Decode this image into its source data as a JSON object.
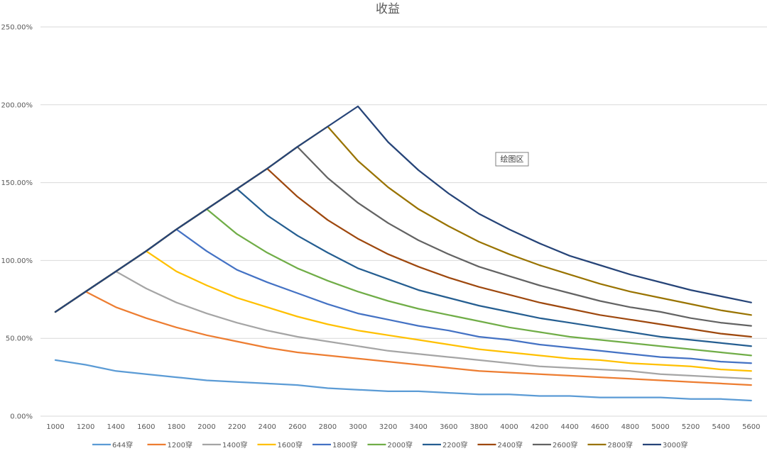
{
  "chart_data": {
    "type": "line",
    "title": "收益",
    "xlabel": "",
    "ylabel": "",
    "ylim": [
      0,
      2.5
    ],
    "grid": true,
    "legend_position": "bottom",
    "x": [
      1000,
      1200,
      1400,
      1600,
      1800,
      2000,
      2200,
      2400,
      2600,
      2800,
      3000,
      3200,
      3400,
      3600,
      3800,
      4000,
      4200,
      4400,
      4600,
      4800,
      5000,
      5200,
      5400,
      5600
    ],
    "y_ticks": [
      "0.00%",
      "50.00%",
      "100.00%",
      "150.00%",
      "200.00%",
      "250.00%"
    ],
    "y_tick_values": [
      0,
      0.5,
      1.0,
      1.5,
      2.0,
      2.5
    ],
    "series": [
      {
        "name": "644穿",
        "color": "#5b9bd5",
        "values": [
          0.36,
          0.33,
          0.29,
          0.27,
          0.25,
          0.23,
          0.22,
          0.21,
          0.2,
          0.18,
          0.17,
          0.16,
          0.16,
          0.15,
          0.14,
          0.14,
          0.13,
          0.13,
          0.12,
          0.12,
          0.12,
          0.11,
          0.11,
          0.1
        ]
      },
      {
        "name": "1200穿",
        "color": "#ed7d31",
        "values": [
          0.67,
          0.8,
          0.7,
          0.63,
          0.57,
          0.52,
          0.48,
          0.44,
          0.41,
          0.39,
          0.37,
          0.35,
          0.33,
          0.31,
          0.29,
          0.28,
          0.27,
          0.26,
          0.25,
          0.24,
          0.23,
          0.22,
          0.21,
          0.2
        ]
      },
      {
        "name": "1400穿",
        "color": "#a5a5a5",
        "values": [
          0.67,
          0.8,
          0.93,
          0.82,
          0.73,
          0.66,
          0.6,
          0.55,
          0.51,
          0.48,
          0.45,
          0.42,
          0.4,
          0.38,
          0.36,
          0.34,
          0.32,
          0.31,
          0.3,
          0.29,
          0.27,
          0.26,
          0.25,
          0.24
        ]
      },
      {
        "name": "1600穿",
        "color": "#ffc000",
        "values": [
          0.67,
          0.8,
          0.93,
          1.06,
          0.93,
          0.84,
          0.76,
          0.7,
          0.64,
          0.59,
          0.55,
          0.52,
          0.49,
          0.46,
          0.43,
          0.41,
          0.39,
          0.37,
          0.36,
          0.34,
          0.33,
          0.32,
          0.3,
          0.29
        ]
      },
      {
        "name": "1800穿",
        "color": "#4472c4",
        "values": [
          0.67,
          0.8,
          0.93,
          1.06,
          1.2,
          1.06,
          0.94,
          0.86,
          0.79,
          0.72,
          0.66,
          0.62,
          0.58,
          0.55,
          0.51,
          0.49,
          0.46,
          0.44,
          0.42,
          0.4,
          0.38,
          0.37,
          0.35,
          0.34
        ]
      },
      {
        "name": "2000穿",
        "color": "#70ad47",
        "values": [
          0.67,
          0.8,
          0.93,
          1.06,
          1.2,
          1.33,
          1.17,
          1.05,
          0.95,
          0.87,
          0.8,
          0.74,
          0.69,
          0.65,
          0.61,
          0.57,
          0.54,
          0.51,
          0.49,
          0.47,
          0.45,
          0.43,
          0.41,
          0.39
        ]
      },
      {
        "name": "2200穿",
        "color": "#255e91",
        "values": [
          0.67,
          0.8,
          0.93,
          1.06,
          1.2,
          1.33,
          1.46,
          1.29,
          1.16,
          1.05,
          0.95,
          0.88,
          0.81,
          0.76,
          0.71,
          0.67,
          0.63,
          0.6,
          0.57,
          0.54,
          0.51,
          0.49,
          0.47,
          0.45
        ]
      },
      {
        "name": "2400穿",
        "color": "#9e480e",
        "values": [
          0.67,
          0.8,
          0.93,
          1.06,
          1.2,
          1.33,
          1.46,
          1.59,
          1.41,
          1.26,
          1.14,
          1.04,
          0.96,
          0.89,
          0.83,
          0.78,
          0.73,
          0.69,
          0.65,
          0.62,
          0.59,
          0.56,
          0.53,
          0.51
        ]
      },
      {
        "name": "2600穿",
        "color": "#636363",
        "values": [
          0.67,
          0.8,
          0.93,
          1.06,
          1.2,
          1.33,
          1.46,
          1.59,
          1.73,
          1.53,
          1.37,
          1.24,
          1.13,
          1.04,
          0.96,
          0.9,
          0.84,
          0.79,
          0.74,
          0.7,
          0.67,
          0.63,
          0.6,
          0.58
        ]
      },
      {
        "name": "2800穿",
        "color": "#997300",
        "values": [
          0.67,
          0.8,
          0.93,
          1.06,
          1.2,
          1.33,
          1.46,
          1.59,
          1.73,
          1.86,
          1.64,
          1.47,
          1.33,
          1.22,
          1.12,
          1.04,
          0.97,
          0.91,
          0.85,
          0.8,
          0.76,
          0.72,
          0.68,
          0.65
        ]
      },
      {
        "name": "3000穿",
        "color": "#264478",
        "values": [
          0.67,
          0.8,
          0.93,
          1.06,
          1.2,
          1.33,
          1.46,
          1.59,
          1.73,
          1.86,
          1.99,
          1.76,
          1.58,
          1.43,
          1.3,
          1.2,
          1.11,
          1.03,
          0.97,
          0.91,
          0.86,
          0.81,
          0.77,
          0.73
        ]
      }
    ],
    "annotation": "绘图区"
  }
}
